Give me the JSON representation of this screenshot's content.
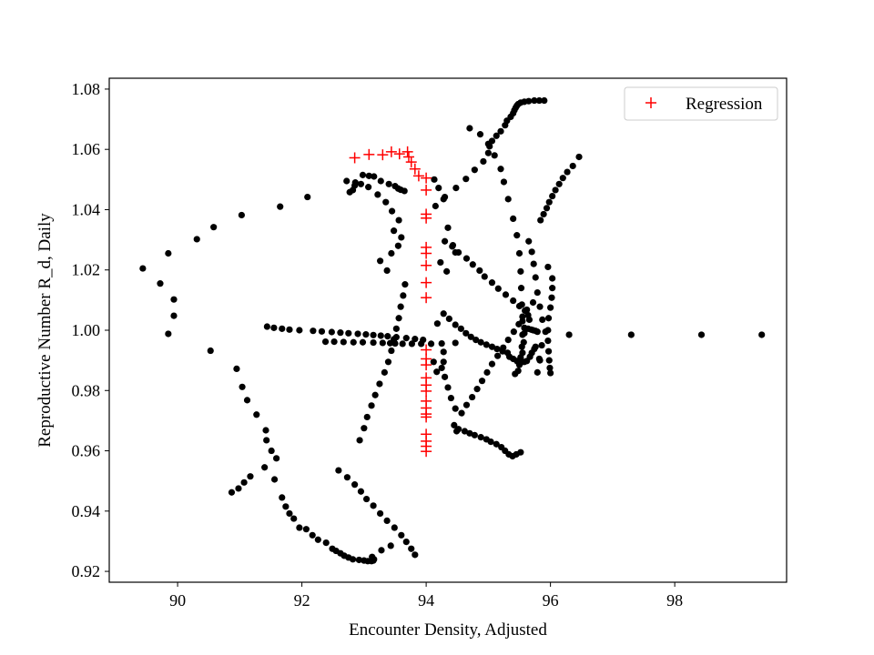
{
  "chart_data": {
    "type": "scatter",
    "title": "",
    "xlabel": "Encounter Density, Adjusted",
    "ylabel": "Reproductive Number R_d, Daily",
    "xlim": [
      88.9,
      99.8
    ],
    "ylim": [
      0.9164,
      1.0836
    ],
    "xticks": [
      90,
      92,
      94,
      96,
      98
    ],
    "yticks": [
      0.92,
      0.94,
      0.96,
      0.98,
      1.0,
      1.02,
      1.04,
      1.06,
      1.08
    ],
    "ytick_labels": [
      "0.92",
      "0.94",
      "0.96",
      "0.98",
      "1.00",
      "1.02",
      "1.04",
      "1.06",
      "1.08"
    ],
    "grid": false,
    "legend": {
      "position": "top-right",
      "entries": [
        "Regression"
      ]
    },
    "colors": {
      "observed": "#000000",
      "regression": "#ff0000",
      "frame": "#000000"
    },
    "series": [
      {
        "marker": "dot",
        "x": [
          89.44,
          89.72,
          89.85,
          89.94,
          89.94,
          89.85,
          90.31,
          90.58,
          91.03,
          91.65,
          92.09,
          92.77,
          92.85,
          92.98,
          93.08,
          93.16,
          93.27,
          93.4,
          93.5,
          93.55,
          93.59,
          93.65,
          90.53,
          90.95,
          91.04,
          91.12,
          91.27,
          91.42,
          91.43,
          91.51,
          91.59,
          90.87,
          90.98,
          91.07,
          91.17,
          91.4,
          91.56,
          91.68,
          91.74,
          91.8,
          91.87,
          91.96,
          92.07,
          92.17,
          92.26,
          92.39,
          92.49,
          92.55,
          92.62,
          92.68,
          92.75,
          92.82,
          92.92,
          93.0,
          93.06,
          93.12,
          93.15,
          93.16,
          93.13,
          93.28,
          93.43,
          92.59,
          92.73,
          92.85,
          92.95,
          93.04,
          93.15,
          93.26,
          93.37,
          93.49,
          93.6,
          93.68,
          93.76,
          93.82,
          91.44,
          91.55,
          91.68,
          91.8,
          91.96,
          92.18,
          92.32,
          92.48,
          92.62,
          92.75,
          92.9,
          93.03,
          93.15,
          93.27,
          93.38,
          93.52,
          93.68,
          93.82,
          93.95,
          92.38,
          92.52,
          92.67,
          92.83,
          92.98,
          93.15,
          93.3,
          93.42,
          93.5,
          93.62,
          93.77,
          93.92,
          94.08,
          94.25,
          94.47,
          92.93,
          93.0,
          93.05,
          93.12,
          93.18,
          93.25,
          93.33,
          93.39,
          93.44,
          93.48,
          93.52,
          93.56,
          93.59,
          93.63,
          93.66,
          93.26,
          93.37,
          93.44,
          93.55,
          93.6,
          93.48,
          93.56,
          93.45,
          93.35,
          93.22,
          93.07,
          92.95,
          92.86,
          92.72,
          92.82,
          94.13,
          94.2,
          94.28,
          94.35,
          94.43,
          94.47,
          94.23,
          94.33,
          94.3,
          94.42,
          94.52,
          94.65,
          94.75,
          94.86,
          94.94,
          95.06,
          95.16,
          95.28,
          95.4,
          95.5,
          95.59,
          95.64,
          95.66,
          94.12,
          94.17,
          94.25,
          94.28,
          94.28,
          94.3,
          94.35,
          94.4,
          94.47,
          94.45,
          94.52,
          94.62,
          94.7,
          94.78,
          94.88,
          94.97,
          95.04,
          95.13,
          95.21,
          95.27,
          95.33,
          95.39,
          95.45,
          95.52,
          94.18,
          94.28,
          94.37,
          94.47,
          94.56,
          94.64,
          94.72,
          94.8,
          94.88,
          94.97,
          95.06,
          95.14,
          95.23,
          95.31,
          95.34,
          95.4,
          95.46,
          95.48,
          95.52,
          95.58,
          95.62,
          95.67,
          95.7,
          95.74,
          95.76,
          95.58,
          95.64,
          95.69,
          95.72,
          95.76,
          95.79,
          94.49,
          94.57,
          94.65,
          94.74,
          94.82,
          94.9,
          94.98,
          95.06,
          95.15,
          95.24,
          95.32,
          95.41,
          95.49,
          95.55,
          95.62,
          95.72,
          94.7,
          94.87,
          95.0,
          95.1,
          95.2,
          95.25,
          95.32,
          95.4,
          95.46,
          95.5,
          95.52,
          95.53,
          95.54,
          95.55,
          95.55,
          95.54,
          95.52,
          95.5,
          95.48,
          95.43,
          95.55,
          95.57,
          95.58,
          95.65,
          95.7,
          95.73,
          95.76,
          95.79,
          95.83,
          95.87,
          95.92,
          95.86,
          95.82,
          95.79,
          95.83,
          95.84,
          95.89,
          95.94,
          95.98,
          96.03,
          96.08,
          96.14,
          96.2,
          96.27,
          96.36,
          96.46,
          95.96,
          96.03,
          96.03,
          96.02,
          96.0,
          95.97,
          95.96,
          95.96,
          95.97,
          95.98,
          95.99,
          96.0,
          94.15,
          94.3,
          94.48,
          94.64,
          94.78,
          94.92,
          95.0,
          95.02,
          95.06,
          95.13,
          95.2,
          95.27,
          95.3,
          95.36,
          95.4,
          95.42,
          95.44,
          95.46,
          95.48,
          95.52,
          95.58,
          95.65,
          95.74,
          95.82,
          95.9,
          96.3,
          97.3,
          98.43,
          99.4
        ],
        "y": [
          1.0205,
          1.0155,
          1.0255,
          1.0102,
          1.0048,
          0.9988,
          1.0302,
          1.0342,
          1.0382,
          1.041,
          1.0442,
          1.0458,
          1.048,
          1.0515,
          1.0512,
          1.051,
          1.0495,
          1.0485,
          1.0478,
          1.047,
          1.0466,
          1.0462,
          0.9932,
          0.9872,
          0.9812,
          0.9768,
          0.972,
          0.9668,
          0.9635,
          0.96,
          0.9575,
          0.9462,
          0.9475,
          0.9495,
          0.9515,
          0.9545,
          0.9505,
          0.9445,
          0.9415,
          0.9392,
          0.9375,
          0.9345,
          0.934,
          0.932,
          0.9305,
          0.9295,
          0.9275,
          0.9268,
          0.926,
          0.9252,
          0.9246,
          0.924,
          0.9238,
          0.9236,
          0.9234,
          0.9234,
          0.9236,
          0.924,
          0.9248,
          0.927,
          0.9285,
          0.9535,
          0.9512,
          0.9488,
          0.9465,
          0.944,
          0.9418,
          0.9392,
          0.9368,
          0.9345,
          0.932,
          0.9298,
          0.9275,
          0.9255,
          1.0012,
          1.0008,
          1.0005,
          1.0002,
          1.0,
          0.9998,
          0.9996,
          0.9994,
          0.9992,
          0.999,
          0.9988,
          0.9986,
          0.9984,
          0.9982,
          0.998,
          0.9977,
          0.9974,
          0.9971,
          0.9968,
          0.9962,
          0.9962,
          0.9961,
          0.996,
          0.996,
          0.9959,
          0.9958,
          0.9957,
          0.9956,
          0.9955,
          0.9955,
          0.9955,
          0.9955,
          0.9956,
          0.9958,
          0.9635,
          0.9675,
          0.9712,
          0.975,
          0.9785,
          0.9822,
          0.986,
          0.9895,
          0.9932,
          0.997,
          1.0005,
          1.004,
          1.0078,
          1.0115,
          1.0152,
          1.023,
          1.0198,
          1.0255,
          1.028,
          1.0308,
          1.033,
          1.0365,
          1.0395,
          1.0425,
          1.045,
          1.0475,
          1.0485,
          1.049,
          1.0495,
          1.0465,
          1.05,
          1.0472,
          1.0435,
          1.034,
          1.0282,
          1.0258,
          1.0225,
          1.0195,
          1.0295,
          1.0278,
          1.0258,
          1.0238,
          1.0218,
          1.0198,
          1.0178,
          1.0158,
          1.0138,
          1.0118,
          1.0098,
          1.008,
          1.0065,
          1.005,
          1.0035,
          0.9895,
          0.9862,
          0.9875,
          0.9895,
          0.9928,
          0.9845,
          0.981,
          0.9775,
          0.974,
          0.9685,
          0.9672,
          0.9665,
          0.9658,
          0.9652,
          0.9645,
          0.9638,
          0.963,
          0.9622,
          0.9612,
          0.96,
          0.9588,
          0.9582,
          0.9588,
          0.9595,
          1.0022,
          1.0055,
          1.0038,
          1.0018,
          1.0005,
          0.999,
          0.9978,
          0.9968,
          0.996,
          0.9952,
          0.9945,
          0.9938,
          0.993,
          0.9925,
          0.9912,
          0.9905,
          0.9898,
          0.9895,
          0.9892,
          0.9895,
          0.9898,
          0.9912,
          0.9925,
          0.9938,
          0.9945,
          1.0008,
          1.0005,
          1.0002,
          1.0,
          0.9998,
          0.9995,
          0.9665,
          0.9725,
          0.9752,
          0.9778,
          0.9805,
          0.9832,
          0.986,
          0.9888,
          0.9915,
          0.9942,
          0.9968,
          0.9995,
          1.002,
          1.0045,
          1.0068,
          1.0092,
          1.067,
          1.065,
          1.0618,
          1.058,
          1.0535,
          1.0492,
          1.0435,
          1.037,
          1.0315,
          1.0255,
          1.0195,
          1.014,
          1.0085,
          1.003,
          0.9985,
          0.9945,
          0.991,
          0.9885,
          0.9865,
          0.9855,
          0.9925,
          0.996,
          0.999,
          1.0295,
          1.026,
          1.022,
          1.0175,
          1.0125,
          1.0078,
          1.0035,
          0.9995,
          0.995,
          0.9905,
          0.986,
          0.99,
          1.0365,
          1.0385,
          1.0405,
          1.0425,
          1.0445,
          1.0465,
          1.0485,
          1.0505,
          1.0525,
          1.0545,
          1.0575,
          1.021,
          1.0172,
          1.014,
          1.0108,
          1.0075,
          1.004,
          1.0,
          0.9965,
          0.993,
          0.99,
          0.9875,
          0.9858,
          1.0412,
          1.0442,
          1.0472,
          1.0502,
          1.0532,
          1.056,
          1.0588,
          1.061,
          1.0628,
          1.0645,
          1.066,
          1.068,
          1.0695,
          1.0708,
          1.072,
          1.073,
          1.0738,
          1.0745,
          1.075,
          1.0755,
          1.0758,
          1.076,
          1.0762,
          1.0762,
          1.0762,
          0.9985,
          0.9985,
          0.9985,
          0.9985
        ]
      },
      {
        "name": "Regression",
        "marker": "plus",
        "x": [
          92.85,
          93.08,
          93.3,
          93.44,
          93.57,
          93.7,
          93.72,
          93.76,
          93.82,
          93.88,
          94.0,
          94.0,
          94.0,
          94.0,
          94.0,
          94.0,
          94.0,
          94.0,
          94.0,
          94.0,
          94.0,
          94.0,
          94.0,
          94.0,
          94.0,
          94.0,
          94.0,
          94.0,
          94.0,
          94.0,
          94.0,
          94.0,
          94.0
        ],
        "y": [
          1.0572,
          1.0583,
          1.0582,
          1.0592,
          1.0585,
          1.0592,
          1.0575,
          1.0558,
          1.0535,
          1.0512,
          1.0505,
          1.0465,
          1.0385,
          1.0372,
          1.0275,
          1.0255,
          1.0215,
          1.0158,
          1.0108,
          0.9935,
          0.9905,
          0.9885,
          0.9842,
          0.9818,
          0.9798,
          0.9765,
          0.9742,
          0.9722,
          0.9712,
          0.9655,
          0.9632,
          0.9615,
          0.9598
        ]
      }
    ]
  }
}
